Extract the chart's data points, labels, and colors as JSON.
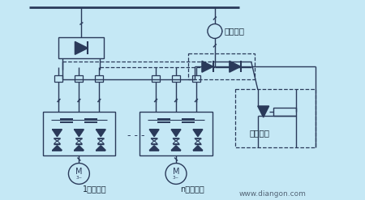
{
  "bg_color": "#c5e8f5",
  "line_color": "#2a3a5a",
  "text_color": "#1a2a3a",
  "label_1": "1号逆变器",
  "label_n": "n号逆变器",
  "label_regen": "再生回馈",
  "label_pulse": "脉冲电阵",
  "label_website": "www.diangon.com",
  "figsize": [
    4.5,
    2.47
  ],
  "dpi": 100
}
